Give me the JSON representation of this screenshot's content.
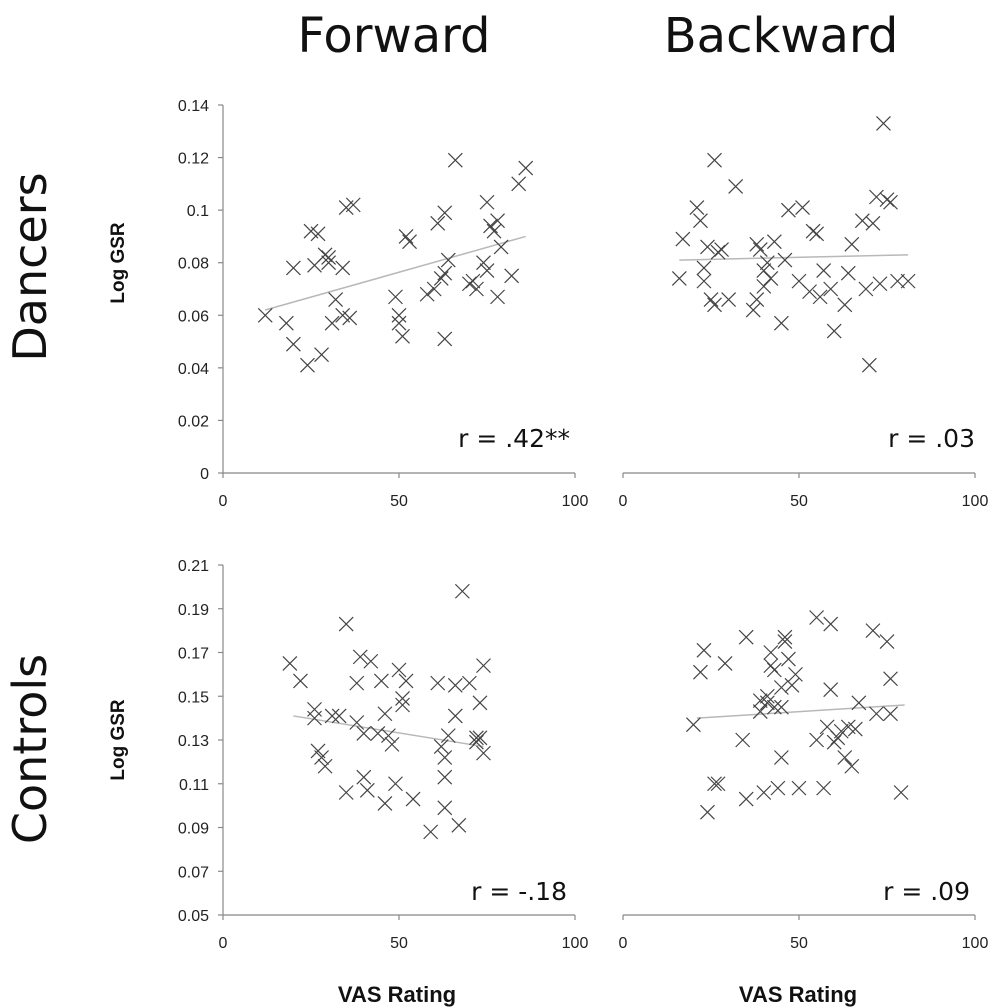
{
  "columns": [
    "Forward",
    "Backward"
  ],
  "rows": [
    "Dancers",
    "Controls"
  ],
  "y_axis_label": "Log GSR",
  "x_axis_label": "VAS Rating",
  "chart_data": [
    {
      "type": "scatter",
      "panel": "Dancers-Forward",
      "xlim": [
        0,
        100
      ],
      "xticks": [
        0,
        50,
        100
      ],
      "ylim": [
        0,
        0.14
      ],
      "yticks": [
        "0",
        "0.02",
        "0.04",
        "0.06",
        "0.08",
        "0.1",
        "0.12",
        "0.14"
      ],
      "show_y_axis": true,
      "correlation_label": "r = .42**",
      "trendline": [
        [
          12,
          0.062
        ],
        [
          86,
          0.09
        ]
      ],
      "points": [
        [
          12,
          0.06
        ],
        [
          18,
          0.057
        ],
        [
          20,
          0.049
        ],
        [
          20,
          0.078
        ],
        [
          24,
          0.041
        ],
        [
          25,
          0.092
        ],
        [
          26,
          0.079
        ],
        [
          27,
          0.091
        ],
        [
          28,
          0.045
        ],
        [
          29,
          0.083
        ],
        [
          30,
          0.082
        ],
        [
          30,
          0.08
        ],
        [
          31,
          0.057
        ],
        [
          32,
          0.066
        ],
        [
          34,
          0.06
        ],
        [
          34,
          0.078
        ],
        [
          35,
          0.101
        ],
        [
          36,
          0.059
        ],
        [
          37,
          0.102
        ],
        [
          49,
          0.067
        ],
        [
          50,
          0.06
        ],
        [
          50,
          0.057
        ],
        [
          51,
          0.052
        ],
        [
          52,
          0.09
        ],
        [
          53,
          0.088
        ],
        [
          58,
          0.068
        ],
        [
          60,
          0.07
        ],
        [
          61,
          0.095
        ],
        [
          62,
          0.074
        ],
        [
          63,
          0.051
        ],
        [
          63,
          0.076
        ],
        [
          63,
          0.099
        ],
        [
          64,
          0.081
        ],
        [
          66,
          0.119
        ],
        [
          70,
          0.072
        ],
        [
          71,
          0.073
        ],
        [
          72,
          0.07
        ],
        [
          74,
          0.08
        ],
        [
          75,
          0.077
        ],
        [
          75,
          0.103
        ],
        [
          76,
          0.094
        ],
        [
          77,
          0.092
        ],
        [
          78,
          0.096
        ],
        [
          78,
          0.067
        ],
        [
          79,
          0.086
        ],
        [
          82,
          0.075
        ],
        [
          84,
          0.11
        ],
        [
          86,
          0.116
        ]
      ]
    },
    {
      "type": "scatter",
      "panel": "Dancers-Backward",
      "xlim": [
        0,
        100
      ],
      "xticks": [
        0,
        50,
        100
      ],
      "ylim": [
        0,
        0.14
      ],
      "show_y_axis": false,
      "correlation_label": "r = .03",
      "trendline": [
        [
          16,
          0.081
        ],
        [
          81,
          0.083
        ]
      ],
      "points": [
        [
          16,
          0.074
        ],
        [
          17,
          0.089
        ],
        [
          21,
          0.101
        ],
        [
          22,
          0.096
        ],
        [
          23,
          0.078
        ],
        [
          23,
          0.073
        ],
        [
          24,
          0.086
        ],
        [
          25,
          0.066
        ],
        [
          26,
          0.119
        ],
        [
          26,
          0.064
        ],
        [
          27,
          0.084
        ],
        [
          28,
          0.085
        ],
        [
          30,
          0.066
        ],
        [
          32,
          0.109
        ],
        [
          37,
          0.062
        ],
        [
          38,
          0.087
        ],
        [
          38,
          0.066
        ],
        [
          39,
          0.085
        ],
        [
          40,
          0.077
        ],
        [
          40,
          0.071
        ],
        [
          41,
          0.08
        ],
        [
          42,
          0.074
        ],
        [
          43,
          0.088
        ],
        [
          45,
          0.057
        ],
        [
          46,
          0.081
        ],
        [
          47,
          0.1
        ],
        [
          50,
          0.073
        ],
        [
          51,
          0.101
        ],
        [
          53,
          0.069
        ],
        [
          54,
          0.092
        ],
        [
          55,
          0.091
        ],
        [
          56,
          0.067
        ],
        [
          57,
          0.077
        ],
        [
          59,
          0.07
        ],
        [
          60,
          0.054
        ],
        [
          63,
          0.064
        ],
        [
          64,
          0.076
        ],
        [
          65,
          0.087
        ],
        [
          68,
          0.096
        ],
        [
          69,
          0.07
        ],
        [
          70,
          0.041
        ],
        [
          71,
          0.095
        ],
        [
          72,
          0.105
        ],
        [
          73,
          0.072
        ],
        [
          74,
          0.133
        ],
        [
          75,
          0.104
        ],
        [
          76,
          0.103
        ],
        [
          78,
          0.073
        ],
        [
          81,
          0.073
        ]
      ]
    },
    {
      "type": "scatter",
      "panel": "Controls-Forward",
      "xlim": [
        0,
        100
      ],
      "xticks": [
        0,
        50,
        100
      ],
      "ylim": [
        0.05,
        0.21
      ],
      "yticks": [
        "0.05",
        "0.07",
        "0.09",
        "0.11",
        "0.13",
        "0.15",
        "0.17",
        "0.19",
        "0.21"
      ],
      "show_y_axis": true,
      "correlation_label": "r = -.18",
      "trendline": [
        [
          20,
          0.141
        ],
        [
          74,
          0.127
        ]
      ],
      "points": [
        [
          19,
          0.165
        ],
        [
          22,
          0.157
        ],
        [
          26,
          0.14
        ],
        [
          26,
          0.144
        ],
        [
          27,
          0.125
        ],
        [
          28,
          0.122
        ],
        [
          29,
          0.118
        ],
        [
          31,
          0.141
        ],
        [
          33,
          0.141
        ],
        [
          35,
          0.183
        ],
        [
          35,
          0.106
        ],
        [
          38,
          0.138
        ],
        [
          38,
          0.156
        ],
        [
          39,
          0.168
        ],
        [
          40,
          0.133
        ],
        [
          40,
          0.113
        ],
        [
          41,
          0.107
        ],
        [
          42,
          0.166
        ],
        [
          44,
          0.133
        ],
        [
          45,
          0.157
        ],
        [
          46,
          0.101
        ],
        [
          46,
          0.142
        ],
        [
          47,
          0.132
        ],
        [
          48,
          0.128
        ],
        [
          49,
          0.11
        ],
        [
          50,
          0.162
        ],
        [
          51,
          0.146
        ],
        [
          51,
          0.149
        ],
        [
          52,
          0.157
        ],
        [
          54,
          0.103
        ],
        [
          59,
          0.088
        ],
        [
          61,
          0.156
        ],
        [
          62,
          0.127
        ],
        [
          63,
          0.113
        ],
        [
          63,
          0.122
        ],
        [
          63,
          0.099
        ],
        [
          64,
          0.132
        ],
        [
          66,
          0.155
        ],
        [
          66,
          0.141
        ],
        [
          67,
          0.091
        ],
        [
          68,
          0.198
        ],
        [
          70,
          0.156
        ],
        [
          72,
          0.129
        ],
        [
          72,
          0.131
        ],
        [
          73,
          0.147
        ],
        [
          73,
          0.131
        ],
        [
          74,
          0.164
        ],
        [
          74,
          0.124
        ]
      ]
    },
    {
      "type": "scatter",
      "panel": "Controls-Backward",
      "xlim": [
        0,
        100
      ],
      "xticks": [
        0,
        50,
        100
      ],
      "ylim": [
        0.05,
        0.21
      ],
      "show_y_axis": false,
      "correlation_label": "r = .09",
      "trendline": [
        [
          21,
          0.14
        ],
        [
          80,
          0.146
        ]
      ],
      "points": [
        [
          20,
          0.137
        ],
        [
          22,
          0.161
        ],
        [
          23,
          0.171
        ],
        [
          24,
          0.097
        ],
        [
          26,
          0.11
        ],
        [
          27,
          0.11
        ],
        [
          29,
          0.165
        ],
        [
          34,
          0.13
        ],
        [
          35,
          0.177
        ],
        [
          35,
          0.103
        ],
        [
          39,
          0.148
        ],
        [
          39,
          0.143
        ],
        [
          40,
          0.106
        ],
        [
          41,
          0.15
        ],
        [
          41,
          0.147
        ],
        [
          42,
          0.17
        ],
        [
          42,
          0.164
        ],
        [
          43,
          0.162
        ],
        [
          43,
          0.145
        ],
        [
          44,
          0.108
        ],
        [
          45,
          0.154
        ],
        [
          45,
          0.145
        ],
        [
          45,
          0.122
        ],
        [
          46,
          0.177
        ],
        [
          46,
          0.175
        ],
        [
          47,
          0.167
        ],
        [
          48,
          0.155
        ],
        [
          49,
          0.16
        ],
        [
          50,
          0.108
        ],
        [
          55,
          0.186
        ],
        [
          55,
          0.13
        ],
        [
          57,
          0.108
        ],
        [
          58,
          0.136
        ],
        [
          59,
          0.183
        ],
        [
          59,
          0.153
        ],
        [
          60,
          0.129
        ],
        [
          61,
          0.131
        ],
        [
          62,
          0.134
        ],
        [
          63,
          0.122
        ],
        [
          64,
          0.136
        ],
        [
          65,
          0.118
        ],
        [
          66,
          0.135
        ],
        [
          67,
          0.147
        ],
        [
          71,
          0.18
        ],
        [
          72,
          0.142
        ],
        [
          75,
          0.175
        ],
        [
          76,
          0.158
        ],
        [
          76,
          0.142
        ],
        [
          79,
          0.106
        ]
      ]
    }
  ]
}
